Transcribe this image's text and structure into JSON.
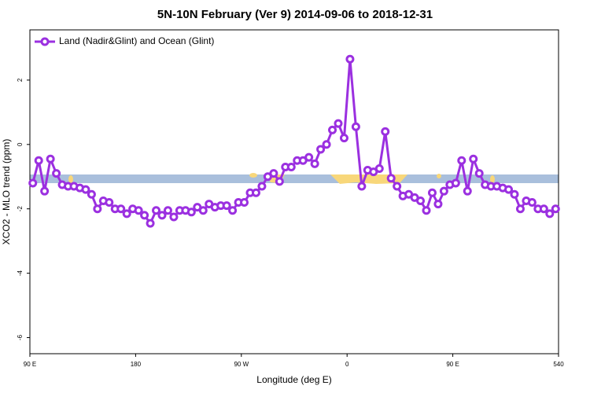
{
  "chart_data": {
    "type": "line",
    "title": "5N-10N February (Ver 9)   2014-09-06 to 2018-12-31",
    "xlabel": "Longitude (deg E)",
    "ylabel": "XCO2 - MLO trend (ppm)",
    "xlim": [
      90,
      540
    ],
    "ylim": [
      -6.5,
      3.56
    ],
    "xticks": [
      {
        "value": 90,
        "label": "90 E"
      },
      180,
      {
        "value": 270,
        "label": "90 W"
      },
      {
        "value": 360,
        "label": "0"
      },
      {
        "value": 450,
        "label": "90 E"
      },
      540
    ],
    "yticks": [
      2,
      0,
      -2,
      -4,
      -6
    ],
    "legend": "upper left",
    "x": [
      92.5,
      97.5,
      102.5,
      107.5,
      112.5,
      117.5,
      122.5,
      127.5,
      132.5,
      137.5,
      142.5,
      147.5,
      152.5,
      157.5,
      162.5,
      167.5,
      172.5,
      177.5,
      182.5,
      187.5,
      192.5,
      197.5,
      202.5,
      207.5,
      212.5,
      217.5,
      222.5,
      227.5,
      232.5,
      237.5,
      242.5,
      247.5,
      252.5,
      257.5,
      262.5,
      267.5,
      272.5,
      277.5,
      282.5,
      287.5,
      292.5,
      297.5,
      302.5,
      307.5,
      312.5,
      317.5,
      322.5,
      327.5,
      332.5,
      337.5,
      342.5,
      347.5,
      352.5,
      357.5,
      362.5,
      367.5,
      372.5,
      377.5,
      382.5,
      387.5,
      392.5,
      397.5,
      402.5,
      407.5,
      412.5,
      417.5,
      422.5,
      427.5,
      432.5,
      437.5,
      442.5,
      447.5,
      452.5,
      457.5,
      462.5,
      467.5,
      472.5,
      477.5,
      482.5,
      487.5,
      492.5,
      497.5,
      502.5,
      507.5,
      512.5,
      517.5,
      522.5,
      527.5,
      532.5,
      537.5
    ],
    "series": [
      {
        "name": "Land (Nadir&Glint) and Ocean (Glint)",
        "color": "#9b30e0",
        "values": [
          -1.2,
          -0.5,
          -1.45,
          -0.45,
          -0.9,
          -1.25,
          -1.3,
          -1.3,
          -1.35,
          -1.4,
          -1.55,
          -2.0,
          -1.75,
          -1.8,
          -2.0,
          -2.0,
          -2.15,
          -2.0,
          -2.05,
          -2.2,
          -2.45,
          -2.05,
          -2.2,
          -2.05,
          -2.25,
          -2.05,
          -2.05,
          -2.1,
          -1.95,
          -2.05,
          -1.85,
          -1.95,
          -1.9,
          -1.9,
          -2.05,
          -1.8,
          -1.8,
          -1.5,
          -1.5,
          -1.3,
          -1.0,
          -0.9,
          -1.15,
          -0.7,
          -0.7,
          -0.5,
          -0.5,
          -0.4,
          -0.6,
          -0.15,
          0,
          0.45,
          0.65,
          0.2,
          2.65,
          0.55,
          -1.3,
          -0.8,
          -0.85,
          -0.75,
          0.4,
          -1.05,
          -1.3,
          -1.6,
          -1.55,
          -1.65,
          -1.75,
          -2.05,
          -1.5,
          -1.85,
          -1.45,
          -1.25,
          -1.2,
          -0.5,
          -1.45,
          -0.45,
          -0.9,
          -1.25,
          -1.3,
          -1.3,
          -1.35,
          -1.4,
          -1.55,
          -2.0,
          -1.75,
          -1.8,
          -2.0,
          -2.0,
          -2.15,
          -2.0
        ]
      }
    ]
  }
}
